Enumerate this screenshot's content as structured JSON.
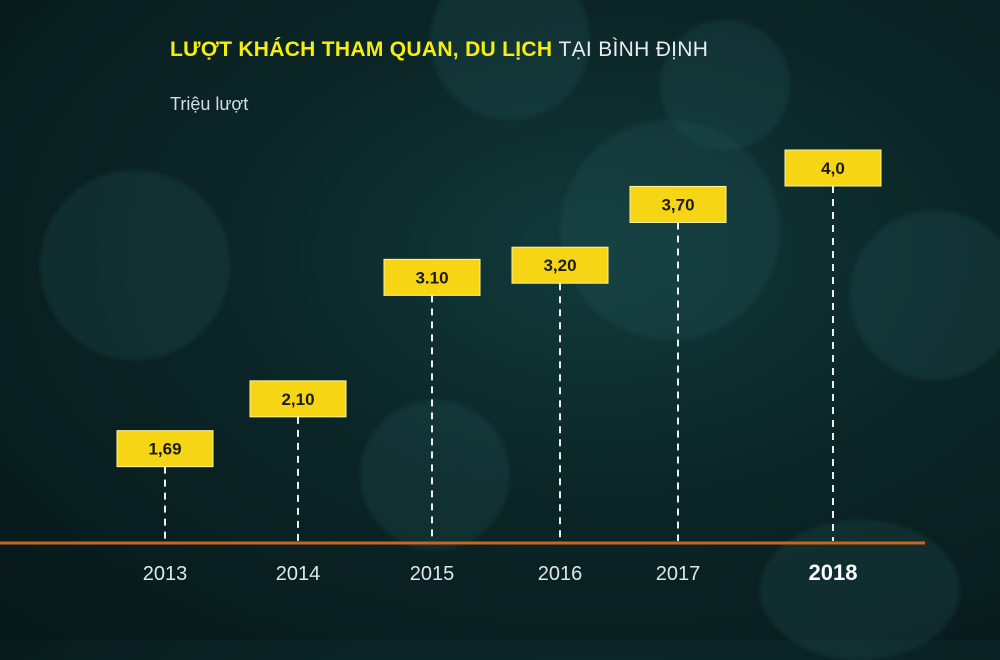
{
  "title": {
    "highlight": "LƯỢT KHÁCH THAM QUAN, DU LỊCH",
    "rest": "TẠI BÌNH ĐỊNH"
  },
  "unit": "Triệu lượt",
  "colors": {
    "accent": "#f6d514",
    "axis": "#c8651e",
    "title_highlight": "#f6ee10"
  },
  "chart_data": {
    "type": "bar",
    "title": "LƯỢT KHÁCH THAM QUAN, DU LỊCH TẠI BÌNH ĐỊNH",
    "ylabel": "Triệu lượt",
    "xlabel": "",
    "categories": [
      "2013",
      "2014",
      "2015",
      "2016",
      "2017",
      "2018"
    ],
    "values": [
      1.69,
      2.1,
      3.1,
      3.2,
      3.7,
      4.0
    ],
    "value_labels": [
      "1,69",
      "2,10",
      "3.10",
      "3,20",
      "3,70",
      "4,0"
    ],
    "highlighted_category": "2018",
    "grid": false
  }
}
